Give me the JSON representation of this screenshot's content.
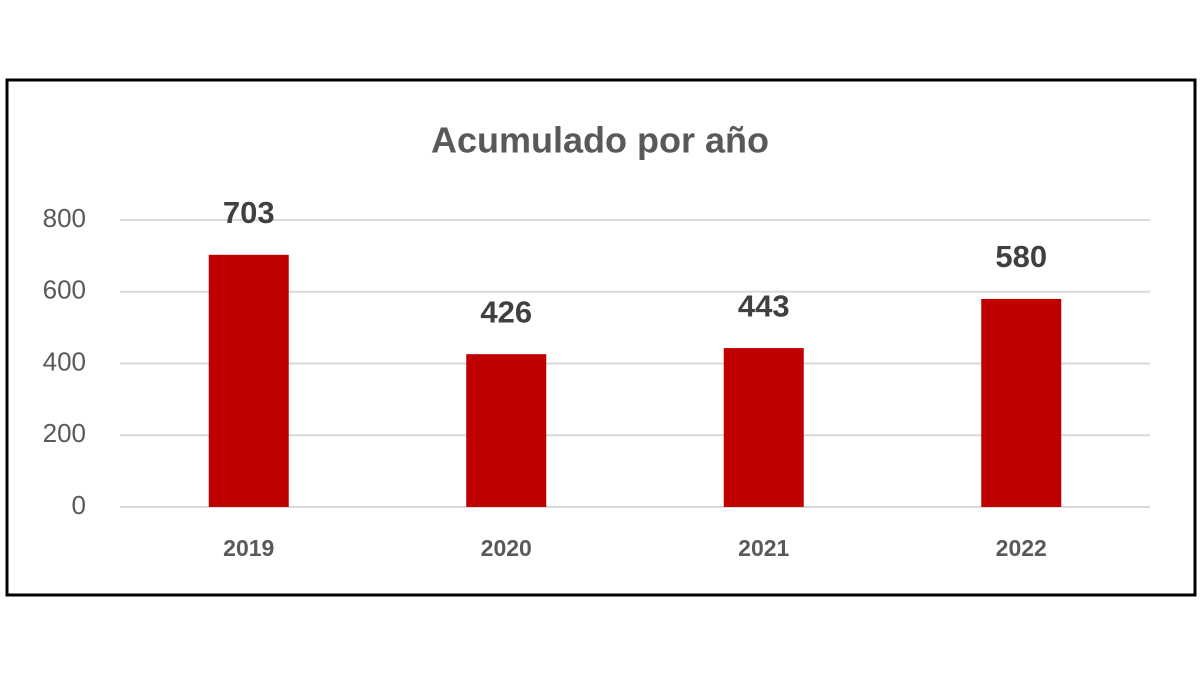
{
  "chart_data": {
    "type": "bar",
    "title": "Acumulado por año",
    "categories": [
      "2019",
      "2020",
      "2021",
      "2022"
    ],
    "values": [
      703,
      426,
      443,
      580
    ],
    "color": "#c00000",
    "ylim": [
      0,
      800
    ],
    "yticks": [
      0,
      200,
      400,
      600,
      800
    ],
    "grid": true
  }
}
